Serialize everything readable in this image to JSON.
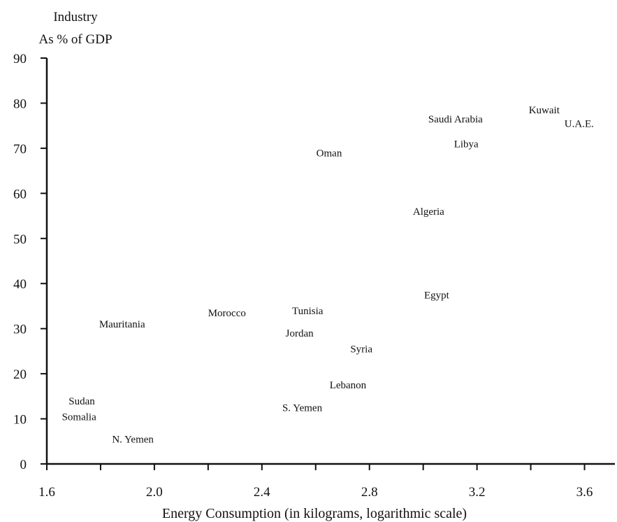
{
  "chart_data": {
    "type": "scatter",
    "title": "",
    "ylabel_lines": [
      "Industry",
      "As % of GDP"
    ],
    "xlabel": "Energy Consumption (in kilograms, logarithmic scale)",
    "x_scale": "log10",
    "xlim": [
      1.6,
      3.7
    ],
    "ylim": [
      0,
      90
    ],
    "x_ticks": [
      1.6,
      1.8,
      2.0,
      2.2,
      2.4,
      2.6,
      2.8,
      3.0,
      3.2,
      3.4,
      3.6
    ],
    "x_tick_labels": [
      "1.6",
      "2.0",
      "2.4",
      "2.8",
      "3.2",
      "3.6"
    ],
    "y_ticks": [
      0,
      10,
      20,
      30,
      40,
      50,
      60,
      70,
      80,
      90
    ],
    "y_tick_labels": [
      "0",
      "10",
      "20",
      "30",
      "40",
      "50",
      "60",
      "70",
      "80",
      "90"
    ],
    "grid": false,
    "legend": "none",
    "markers": "labels-only",
    "points": [
      {
        "label": "Kuwait",
        "x": 3.45,
        "y": 78.5
      },
      {
        "label": "U.A.E.",
        "x": 3.58,
        "y": 75.5
      },
      {
        "label": "Saudi Arabia",
        "x": 3.12,
        "y": 76.5
      },
      {
        "label": "Libya",
        "x": 3.16,
        "y": 71.0
      },
      {
        "label": "Oman",
        "x": 2.65,
        "y": 69.0
      },
      {
        "label": "Algeria",
        "x": 3.02,
        "y": 56.0
      },
      {
        "label": "Egypt",
        "x": 3.05,
        "y": 37.5
      },
      {
        "label": "Tunisia",
        "x": 2.57,
        "y": 34.0
      },
      {
        "label": "Morocco",
        "x": 2.27,
        "y": 33.5
      },
      {
        "label": "Mauritania",
        "x": 1.88,
        "y": 31.0
      },
      {
        "label": "Jordan",
        "x": 2.54,
        "y": 29.0
      },
      {
        "label": "Syria",
        "x": 2.77,
        "y": 25.5
      },
      {
        "label": "Lebanon",
        "x": 2.72,
        "y": 17.5
      },
      {
        "label": "S. Yemen",
        "x": 2.55,
        "y": 12.5
      },
      {
        "label": "Sudan",
        "x": 1.73,
        "y": 14.0
      },
      {
        "label": "Somalia",
        "x": 1.72,
        "y": 10.5
      },
      {
        "label": "N. Yemen",
        "x": 1.92,
        "y": 5.5
      }
    ]
  }
}
